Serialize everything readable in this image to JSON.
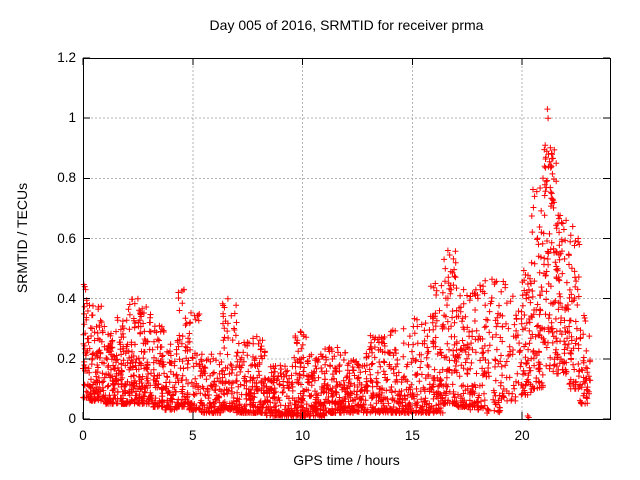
{
  "window": {
    "background": "#ffffff"
  },
  "chart_data": {
    "type": "scatter",
    "title": "Day 005 of 2016, SRMTID for receiver prma",
    "xlabel": "GPS time / hours",
    "ylabel": "SRMTID / TECUs",
    "xlim": [
      0,
      24
    ],
    "ylim": [
      0,
      1.2
    ],
    "xticks": [
      0,
      5,
      10,
      15,
      20
    ],
    "xtick_labels": [
      "0",
      "5",
      "10",
      "15",
      "20"
    ],
    "yticks": [
      0,
      0.2,
      0.4,
      0.6,
      0.8,
      1.0,
      1.2
    ],
    "ytick_labels": [
      "0",
      "0.2",
      "0.4",
      "0.6",
      "0.8",
      "1",
      "1.2"
    ],
    "grid": true,
    "legend": "none",
    "marker": "plus",
    "marker_color": "#ff0000",
    "grid_color": "#b3b3b3",
    "frame_color": "#000000",
    "text_color": "#000000",
    "x_data_max": 23.1,
    "y_data_max": 1.03,
    "seed": 42,
    "bands_format": [
      "hour_start",
      "hour_end",
      "y_min",
      "y_max",
      "n_points",
      "bottom_weight_exponent"
    ],
    "bands": [
      [
        0.0,
        0.3,
        0.07,
        0.45,
        45,
        1.8
      ],
      [
        0.3,
        1.0,
        0.06,
        0.38,
        100,
        2.0
      ],
      [
        1.0,
        1.5,
        0.05,
        0.3,
        70,
        2.0
      ],
      [
        1.5,
        2.0,
        0.05,
        0.34,
        80,
        2.0
      ],
      [
        2.0,
        2.6,
        0.05,
        0.4,
        90,
        2.0
      ],
      [
        2.6,
        3.1,
        0.05,
        0.38,
        85,
        2.0
      ],
      [
        3.1,
        3.7,
        0.04,
        0.31,
        80,
        2.0
      ],
      [
        3.7,
        4.3,
        0.03,
        0.26,
        65,
        2.0
      ],
      [
        4.3,
        4.8,
        0.04,
        0.43,
        70,
        2.2
      ],
      [
        4.8,
        5.3,
        0.03,
        0.38,
        60,
        2.4
      ],
      [
        5.3,
        6.3,
        0.02,
        0.22,
        110,
        2.0
      ],
      [
        6.3,
        7.0,
        0.03,
        0.4,
        95,
        2.4
      ],
      [
        7.0,
        7.7,
        0.02,
        0.26,
        95,
        2.2
      ],
      [
        7.7,
        8.3,
        0.02,
        0.28,
        90,
        2.2
      ],
      [
        8.3,
        9.5,
        0.01,
        0.18,
        150,
        1.8
      ],
      [
        9.5,
        10.2,
        0.01,
        0.29,
        100,
        2.4
      ],
      [
        10.2,
        11.0,
        0.01,
        0.23,
        115,
        2.2
      ],
      [
        11.0,
        12.0,
        0.02,
        0.25,
        125,
        2.2
      ],
      [
        12.0,
        13.0,
        0.02,
        0.22,
        120,
        2.0
      ],
      [
        13.0,
        14.0,
        0.02,
        0.28,
        120,
        2.2
      ],
      [
        14.0,
        15.0,
        0.02,
        0.3,
        110,
        2.2
      ],
      [
        15.0,
        15.8,
        0.02,
        0.35,
        90,
        2.2
      ],
      [
        15.8,
        16.4,
        0.02,
        0.46,
        90,
        2.0
      ],
      [
        16.4,
        17.0,
        0.05,
        0.56,
        85,
        2.0
      ],
      [
        17.0,
        17.6,
        0.04,
        0.45,
        80,
        2.0
      ],
      [
        17.6,
        18.3,
        0.03,
        0.45,
        80,
        2.0
      ],
      [
        18.3,
        19.0,
        0.02,
        0.47,
        60,
        1.6
      ],
      [
        19.0,
        19.8,
        0.06,
        0.47,
        55,
        1.6
      ],
      [
        19.8,
        20.4,
        0.08,
        0.52,
        70,
        1.5
      ],
      [
        20.4,
        21.0,
        0.1,
        0.78,
        85,
        1.6
      ],
      [
        21.0,
        21.5,
        0.15,
        0.92,
        75,
        1.4
      ],
      [
        21.5,
        22.1,
        0.15,
        0.68,
        85,
        1.4
      ],
      [
        22.1,
        22.6,
        0.1,
        0.62,
        60,
        1.6
      ],
      [
        22.6,
        23.1,
        0.05,
        0.35,
        50,
        1.6
      ]
    ],
    "peaks_format": [
      "hour",
      "value"
    ],
    "peaks": [
      [
        21.15,
        1.03
      ],
      [
        21.18,
        1.0
      ],
      [
        21.05,
        0.91
      ],
      [
        21.12,
        0.89
      ],
      [
        21.2,
        0.88
      ],
      [
        21.08,
        0.87
      ],
      [
        21.25,
        0.855
      ],
      [
        21.02,
        0.84
      ],
      [
        21.3,
        0.835
      ],
      [
        21.55,
        0.85
      ],
      [
        20.95,
        0.8
      ],
      [
        21.55,
        0.79
      ],
      [
        21.1,
        0.77
      ],
      [
        21.35,
        0.75
      ],
      [
        21.45,
        0.72
      ],
      [
        16.62,
        0.56
      ],
      [
        16.7,
        0.545
      ],
      [
        16.5,
        0.5
      ],
      [
        16.75,
        0.49
      ],
      [
        0.08,
        0.44
      ],
      [
        0.12,
        0.43
      ],
      [
        21.85,
        0.65
      ],
      [
        21.9,
        0.63
      ],
      [
        22.0,
        0.66
      ],
      [
        22.3,
        0.64
      ],
      [
        22.55,
        0.6
      ],
      [
        22.6,
        0.58
      ],
      [
        20.3,
        0.005
      ],
      [
        20.25,
        0.01
      ],
      [
        9.9,
        0.29
      ],
      [
        13.6,
        0.27
      ],
      [
        14.6,
        0.3
      ],
      [
        2.5,
        0.4
      ],
      [
        6.6,
        0.4
      ],
      [
        4.6,
        0.43
      ]
    ]
  }
}
